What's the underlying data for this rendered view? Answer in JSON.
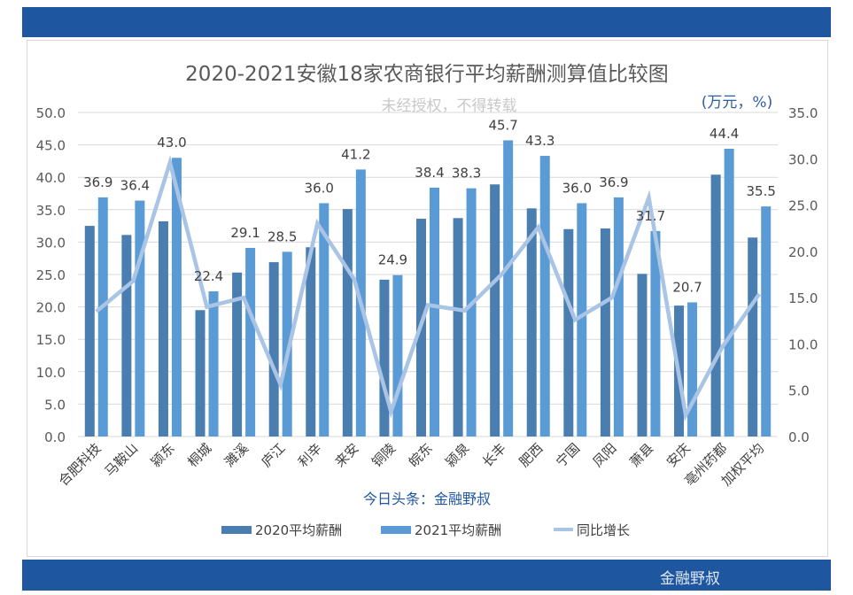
{
  "header": {},
  "footer": {
    "brand": "金融野叔"
  },
  "chart_data": {
    "type": "bar",
    "title": "2020-2021安徽18家农商银行平均薪酬测算值比较图",
    "watermark": "未经授权，不得转载",
    "unit": "(万元，%)",
    "source": "今日头条：金融野叔",
    "categories": [
      "合肥科技",
      "马鞍山",
      "颍东",
      "桐城",
      "濉溪",
      "庐江",
      "利辛",
      "来安",
      "铜陵",
      "皖东",
      "颍泉",
      "长丰",
      "肥西",
      "宁国",
      "凤阳",
      "萧县",
      "安庆",
      "亳州药都",
      "加权平均"
    ],
    "series": [
      {
        "name": "2020平均薪酬",
        "type": "bar",
        "axis": "left",
        "color": "#4a7eb0",
        "values": [
          32.5,
          31.1,
          33.2,
          19.5,
          25.3,
          26.9,
          29.2,
          35.1,
          24.2,
          33.6,
          33.7,
          38.9,
          35.2,
          32.0,
          32.1,
          25.1,
          20.2,
          40.4,
          30.7
        ]
      },
      {
        "name": "2021平均薪酬",
        "type": "bar",
        "axis": "left",
        "color": "#5b9bd5",
        "values": [
          36.9,
          36.4,
          43.0,
          22.4,
          29.1,
          28.5,
          36.0,
          41.2,
          24.9,
          38.4,
          38.3,
          45.7,
          43.3,
          36.0,
          36.9,
          31.7,
          20.7,
          44.4,
          35.5
        ],
        "labels": [
          "36.9",
          "36.4",
          "43.0",
          "22.4",
          "29.1",
          "28.5",
          "36.0",
          "41.2",
          "24.9",
          "38.4",
          "38.3",
          "45.7",
          "43.3",
          "36.0",
          "36.9",
          "31.7",
          "20.7",
          "44.4",
          "35.5"
        ]
      },
      {
        "name": "同比增长",
        "type": "line",
        "axis": "right",
        "color": "#a9c4e4",
        "values": [
          13.5,
          16.8,
          29.6,
          14.0,
          15.0,
          5.6,
          23.0,
          17.0,
          2.7,
          14.2,
          13.6,
          17.5,
          22.6,
          12.6,
          15.0,
          25.8,
          2.3,
          9.7,
          15.4
        ]
      }
    ],
    "ylim_left": [
      0,
      50
    ],
    "ylim_right": [
      0,
      35
    ],
    "yticks_left": [
      "0.0",
      "5.0",
      "10.0",
      "15.0",
      "20.0",
      "25.0",
      "30.0",
      "35.0",
      "40.0",
      "45.0",
      "50.0"
    ],
    "yticks_right": [
      "0.0",
      "5.0",
      "10.0",
      "15.0",
      "20.0",
      "25.0",
      "30.0",
      "35.0"
    ],
    "grid": true,
    "legend": "bottom"
  }
}
